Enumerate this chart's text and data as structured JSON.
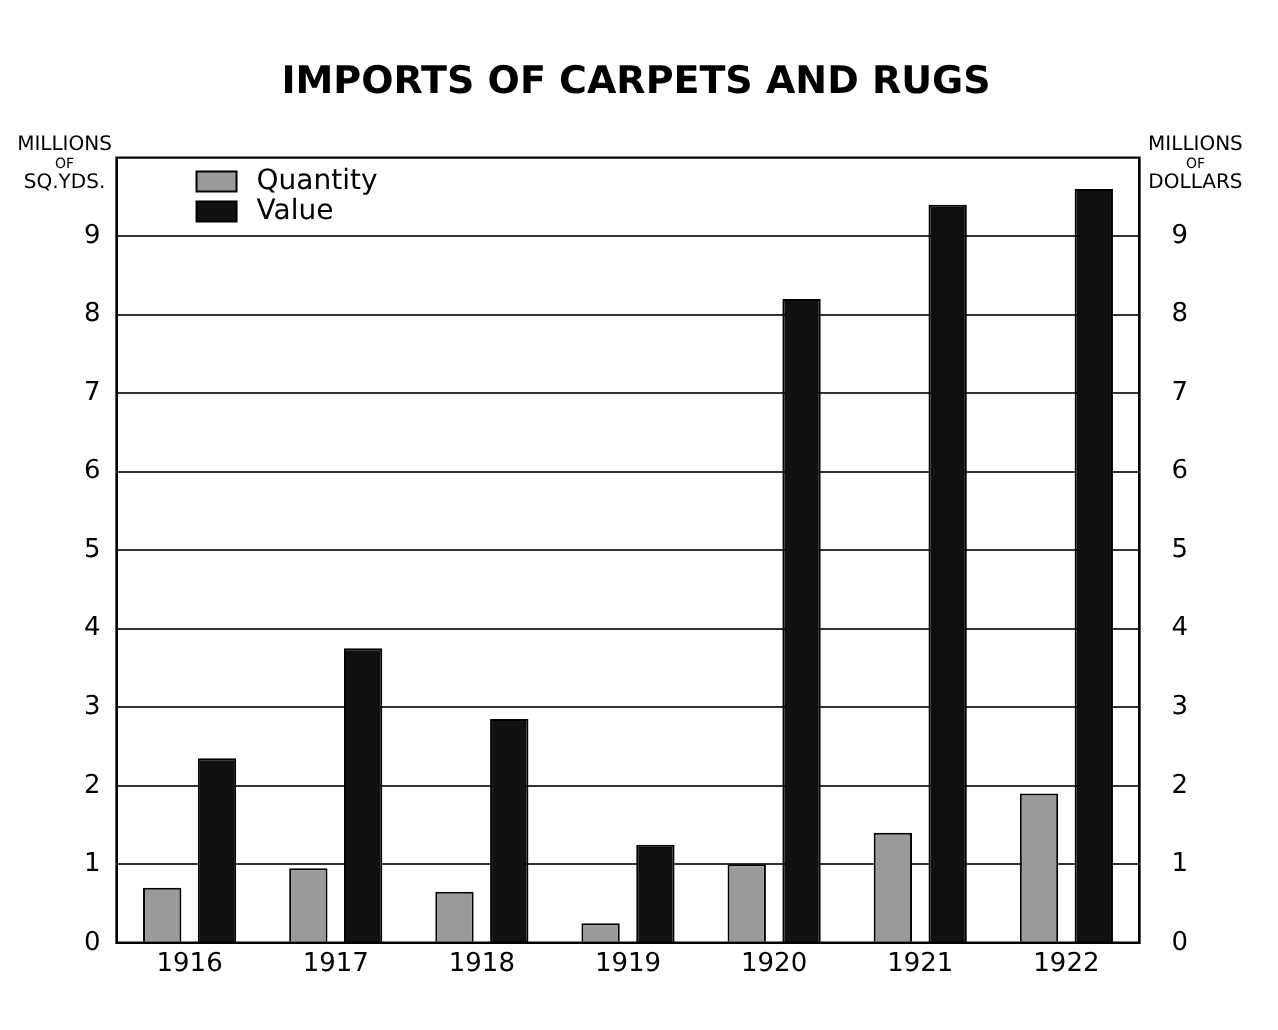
{
  "chart_data": {
    "type": "bar",
    "title": "IMPORTS OF CARPETS AND RUGS",
    "ylabel": "MILLIONS OF SQ.YDS.",
    "y2label": "MILLIONS OF DOLLARS",
    "categories": [
      "1916",
      "1917",
      "1918",
      "1919",
      "1920",
      "1921",
      "1922"
    ],
    "series": [
      {
        "name": "Quantity",
        "color": "#9a9a9a",
        "values": [
          0.7,
          0.95,
          0.65,
          0.25,
          1.0,
          1.4,
          1.9
        ]
      },
      {
        "name": "Value",
        "color": "#111111",
        "axis": "y2",
        "values": [
          2.35,
          3.75,
          2.85,
          1.25,
          8.2,
          9.4,
          9.6
        ]
      }
    ],
    "ylim": [
      0,
      10
    ],
    "yticks": [
      0,
      1,
      2,
      3,
      4,
      5,
      6,
      7,
      8,
      9
    ],
    "y2lim": [
      0,
      10
    ],
    "y2ticks": [
      0,
      1,
      2,
      3,
      4,
      5,
      6,
      7,
      8,
      9
    ],
    "grid": "y",
    "legend": "top left"
  }
}
